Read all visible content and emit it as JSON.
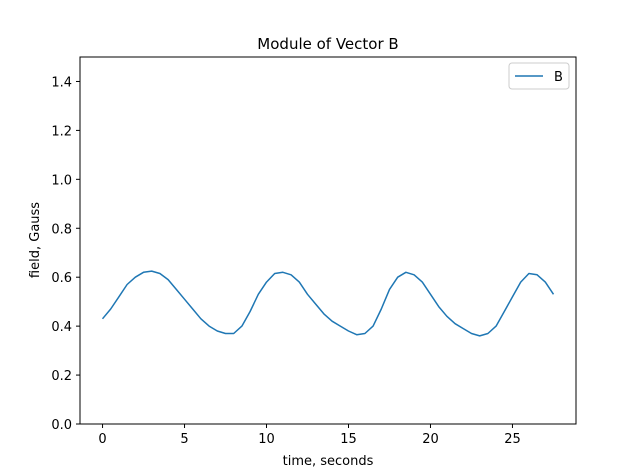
{
  "chart_data": {
    "type": "line",
    "title": "Module of Vector B",
    "xlabel": "time, seconds",
    "ylabel": "field, Gauss",
    "xlim": [
      -1.375,
      28.875
    ],
    "ylim": [
      0.0,
      1.5
    ],
    "xticks": [
      0,
      5,
      10,
      15,
      20,
      25
    ],
    "yticks": [
      0.0,
      0.2,
      0.4,
      0.6,
      0.8,
      1.0,
      1.2,
      1.4
    ],
    "xtick_labels": [
      "0",
      "5",
      "10",
      "15",
      "20",
      "25"
    ],
    "ytick_labels": [
      "0.0",
      "0.2",
      "0.4",
      "0.6",
      "0.8",
      "1.0",
      "1.2",
      "1.4"
    ],
    "grid": false,
    "legend_position": "top-right",
    "series": [
      {
        "name": "B",
        "color": "#1f77b4",
        "x": [
          0,
          0.5,
          1,
          1.5,
          2,
          2.5,
          3,
          3.5,
          4,
          4.5,
          5,
          5.5,
          6,
          6.5,
          7,
          7.5,
          8,
          8.5,
          9,
          9.5,
          10,
          10.5,
          11,
          11.5,
          12,
          12.5,
          13,
          13.5,
          14,
          14.5,
          15,
          15.5,
          16,
          16.5,
          17,
          17.5,
          18,
          18.5,
          19,
          19.5,
          20,
          20.5,
          21,
          21.5,
          22,
          22.5,
          23,
          23.5,
          24,
          24.5,
          25,
          25.5,
          26,
          26.5,
          27,
          27.5
        ],
        "values": [
          0.43,
          0.47,
          0.52,
          0.57,
          0.6,
          0.62,
          0.625,
          0.615,
          0.59,
          0.55,
          0.51,
          0.47,
          0.43,
          0.4,
          0.38,
          0.37,
          0.37,
          0.4,
          0.46,
          0.53,
          0.58,
          0.615,
          0.62,
          0.61,
          0.58,
          0.53,
          0.49,
          0.45,
          0.42,
          0.4,
          0.38,
          0.365,
          0.37,
          0.4,
          0.47,
          0.55,
          0.6,
          0.62,
          0.61,
          0.58,
          0.53,
          0.48,
          0.44,
          0.41,
          0.39,
          0.37,
          0.36,
          0.37,
          0.4,
          0.46,
          0.52,
          0.58,
          0.615,
          0.61,
          0.58,
          0.53
        ],
        "values_tail_note": ""
      }
    ]
  }
}
